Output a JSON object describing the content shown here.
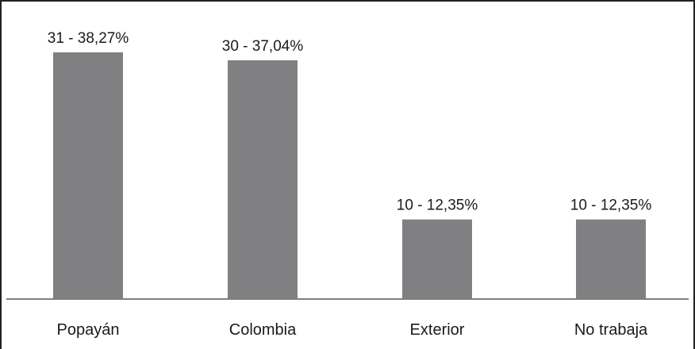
{
  "chart_data": {
    "type": "bar",
    "categories": [
      "Popayán",
      "Colombia",
      "Exterior",
      "No trabaja"
    ],
    "values": [
      31,
      30,
      10,
      10
    ],
    "percentages": [
      38.27,
      37.04,
      12.35,
      12.35
    ],
    "data_labels": [
      "31 - 38,27%",
      "30 - 37,04%",
      "10 - 12,35%",
      "10 - 12,35%"
    ],
    "title": "",
    "xlabel": "",
    "ylabel": "",
    "ylim": [
      0,
      31
    ],
    "grid": false,
    "legend": "none",
    "bar_color": "#808083",
    "axis_color": "#7f7f7f"
  }
}
